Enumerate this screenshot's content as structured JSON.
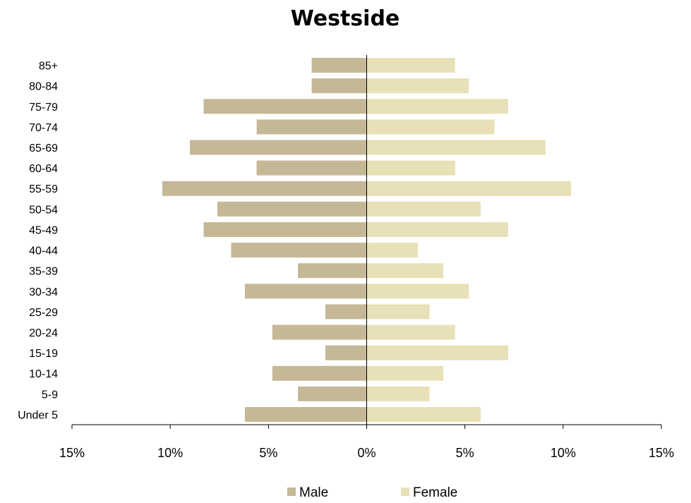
{
  "chart_data": {
    "type": "bar",
    "orientation": "horizontal",
    "title": "Westside",
    "categories": [
      "85+",
      "80-84",
      "75-79",
      "70-74",
      "65-69",
      "60-64",
      "55-59",
      "50-54",
      "45-49",
      "40-44",
      "35-39",
      "30-34",
      "25-29",
      "20-24",
      "15-19",
      "10-14",
      "5-9",
      "Under 5"
    ],
    "series": [
      {
        "name": "Male",
        "color": "#c4b896",
        "values": [
          -2.8,
          -2.8,
          -8.3,
          -5.6,
          -9.0,
          -5.6,
          -10.4,
          -7.6,
          -8.3,
          -6.9,
          -3.5,
          -6.2,
          -2.1,
          -4.8,
          -2.1,
          -4.8,
          -3.5,
          -6.2
        ]
      },
      {
        "name": "Female",
        "color": "#e8e0b6",
        "values": [
          4.5,
          5.2,
          7.2,
          6.5,
          9.1,
          4.5,
          10.4,
          5.8,
          7.2,
          2.6,
          3.9,
          5.2,
          3.2,
          4.5,
          7.2,
          3.9,
          3.2,
          5.8
        ]
      }
    ],
    "xlim": [
      -15,
      15
    ],
    "xticks": [
      -15,
      -10,
      -5,
      0,
      5,
      10,
      15
    ],
    "xtick_labels": [
      "15%",
      "10%",
      "5%",
      "0%",
      "5%",
      "10%",
      "15%"
    ],
    "xlabel": "",
    "ylabel": "",
    "grid": false,
    "legend_position": "bottom"
  }
}
